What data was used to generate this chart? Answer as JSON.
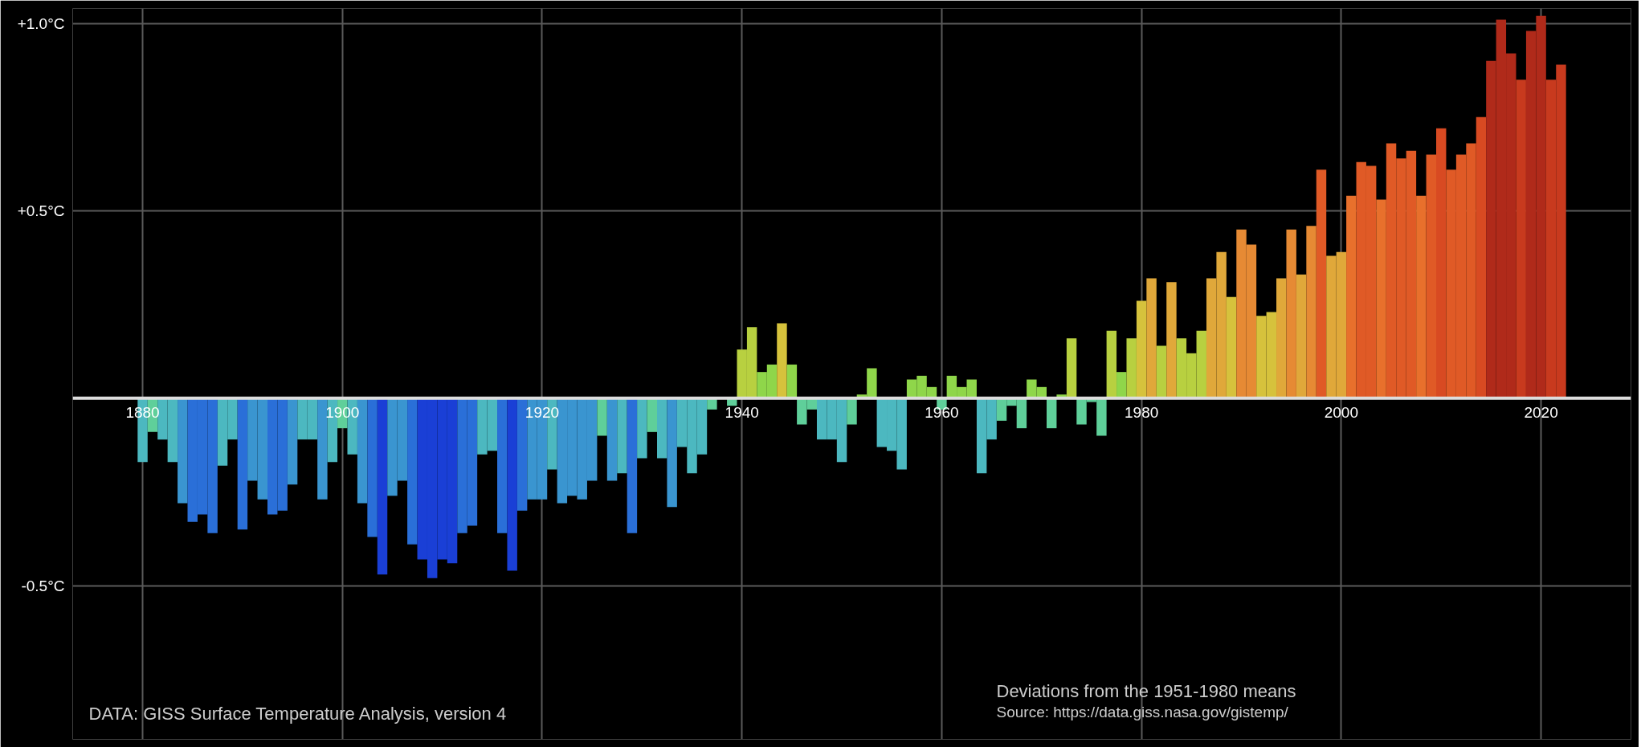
{
  "chart_data": {
    "type": "bar",
    "x": [
      1880,
      1881,
      1882,
      1883,
      1884,
      1885,
      1886,
      1887,
      1888,
      1889,
      1890,
      1891,
      1892,
      1893,
      1894,
      1895,
      1896,
      1897,
      1898,
      1899,
      1900,
      1901,
      1902,
      1903,
      1904,
      1905,
      1906,
      1907,
      1908,
      1909,
      1910,
      1911,
      1912,
      1913,
      1914,
      1915,
      1916,
      1917,
      1918,
      1919,
      1920,
      1921,
      1922,
      1923,
      1924,
      1925,
      1926,
      1927,
      1928,
      1929,
      1930,
      1931,
      1932,
      1933,
      1934,
      1935,
      1936,
      1937,
      1938,
      1939,
      1940,
      1941,
      1942,
      1943,
      1944,
      1945,
      1946,
      1947,
      1948,
      1949,
      1950,
      1951,
      1952,
      1953,
      1954,
      1955,
      1956,
      1957,
      1958,
      1959,
      1960,
      1961,
      1962,
      1963,
      1964,
      1965,
      1966,
      1967,
      1968,
      1969,
      1970,
      1971,
      1972,
      1973,
      1974,
      1975,
      1976,
      1977,
      1978,
      1979,
      1980,
      1981,
      1982,
      1983,
      1984,
      1985,
      1986,
      1987,
      1988,
      1989,
      1990,
      1991,
      1992,
      1993,
      1994,
      1995,
      1996,
      1997,
      1998,
      1999,
      2000,
      2001,
      2002,
      2003,
      2004,
      2005,
      2006,
      2007,
      2008,
      2009,
      2010,
      2011,
      2012,
      2013,
      2014,
      2015,
      2016,
      2017,
      2018,
      2019,
      2020,
      2021,
      2022
    ],
    "values": [
      -0.17,
      -0.09,
      -0.11,
      -0.17,
      -0.28,
      -0.33,
      -0.31,
      -0.36,
      -0.18,
      -0.11,
      -0.35,
      -0.22,
      -0.27,
      -0.31,
      -0.3,
      -0.23,
      -0.11,
      -0.11,
      -0.27,
      -0.17,
      -0.08,
      -0.15,
      -0.28,
      -0.37,
      -0.47,
      -0.26,
      -0.22,
      -0.39,
      -0.43,
      -0.48,
      -0.43,
      -0.44,
      -0.36,
      -0.34,
      -0.15,
      -0.14,
      -0.36,
      -0.46,
      -0.3,
      -0.27,
      -0.27,
      -0.19,
      -0.28,
      -0.26,
      -0.27,
      -0.22,
      -0.1,
      -0.22,
      -0.2,
      -0.36,
      -0.16,
      -0.09,
      -0.16,
      -0.29,
      -0.13,
      -0.2,
      -0.15,
      -0.03,
      0.0,
      -0.02,
      0.13,
      0.19,
      0.07,
      0.09,
      0.2,
      0.09,
      -0.07,
      -0.03,
      -0.11,
      -0.11,
      -0.17,
      -0.07,
      0.01,
      0.08,
      -0.13,
      -0.14,
      -0.19,
      0.05,
      0.06,
      0.03,
      -0.03,
      0.06,
      0.03,
      0.05,
      -0.2,
      -0.11,
      -0.06,
      -0.02,
      -0.08,
      0.05,
      0.03,
      -0.08,
      0.01,
      0.16,
      -0.07,
      -0.01,
      -0.1,
      0.18,
      0.07,
      0.16,
      0.26,
      0.32,
      0.14,
      0.31,
      0.16,
      0.12,
      0.18,
      0.32,
      0.39,
      0.27,
      0.45,
      0.41,
      0.22,
      0.23,
      0.32,
      0.45,
      0.33,
      0.46,
      0.61,
      0.38,
      0.39,
      0.54,
      0.63,
      0.62,
      0.53,
      0.68,
      0.64,
      0.66,
      0.54,
      0.65,
      0.72,
      0.61,
      0.65,
      0.68,
      0.75,
      0.9,
      1.01,
      0.92,
      0.85,
      0.98,
      1.02,
      0.85,
      0.89
    ],
    "colors": [
      "#4cb8c0",
      "#5fcf9a",
      "#4cb8c0",
      "#4cb8c0",
      "#3a95d0",
      "#2a6fd8",
      "#2a6fd8",
      "#2a6fd8",
      "#4cb8c0",
      "#4cb8c0",
      "#2a6fd8",
      "#3a95d0",
      "#3a95d0",
      "#2a6fd8",
      "#2a6fd8",
      "#3a95d0",
      "#4cb8c0",
      "#4cb8c0",
      "#3a95d0",
      "#4cb8c0",
      "#5fcf9a",
      "#4cb8c0",
      "#3a95d0",
      "#2a6fd8",
      "#1a3fd6",
      "#3a95d0",
      "#3a95d0",
      "#2a6fd8",
      "#1a3fd6",
      "#1a3fd6",
      "#1a3fd6",
      "#1a3fd6",
      "#2a6fd8",
      "#2a6fd8",
      "#4cb8c0",
      "#4cb8c0",
      "#2a6fd8",
      "#1a3fd6",
      "#2a6fd8",
      "#3a95d0",
      "#3a95d0",
      "#4cb8c0",
      "#3a95d0",
      "#3a95d0",
      "#3a95d0",
      "#3a95d0",
      "#5fcf9a",
      "#3a95d0",
      "#4cb8c0",
      "#2a6fd8",
      "#4cb8c0",
      "#5fcf9a",
      "#4cb8c0",
      "#3a95d0",
      "#4cb8c0",
      "#4cb8c0",
      "#4cb8c0",
      "#5fcf9a",
      "#8fd64a",
      "#5fcf9a",
      "#b8d040",
      "#b8d040",
      "#8fd64a",
      "#8fd64a",
      "#d6c23c",
      "#8fd64a",
      "#5fcf9a",
      "#5fcf9a",
      "#4cb8c0",
      "#4cb8c0",
      "#4cb8c0",
      "#5fcf9a",
      "#8fd64a",
      "#8fd64a",
      "#4cb8c0",
      "#4cb8c0",
      "#4cb8c0",
      "#8fd64a",
      "#8fd64a",
      "#8fd64a",
      "#5fcf9a",
      "#8fd64a",
      "#8fd64a",
      "#8fd64a",
      "#4cb8c0",
      "#4cb8c0",
      "#5fcf9a",
      "#5fcf9a",
      "#5fcf9a",
      "#8fd64a",
      "#8fd64a",
      "#5fcf9a",
      "#8fd64a",
      "#b8d040",
      "#5fcf9a",
      "#5fcf9a",
      "#5fcf9a",
      "#b8d040",
      "#8fd64a",
      "#b8d040",
      "#d6c23c",
      "#e0a83a",
      "#b8d040",
      "#e0a83a",
      "#b8d040",
      "#b8d040",
      "#b8d040",
      "#e0a83a",
      "#e0a83a",
      "#d6c23c",
      "#e68a34",
      "#e68a34",
      "#d6c23c",
      "#d6c23c",
      "#e0a83a",
      "#e68a34",
      "#e0a83a",
      "#e68a34",
      "#e05a26",
      "#e0a83a",
      "#e0a83a",
      "#e8702c",
      "#e05a26",
      "#e05a26",
      "#e8702c",
      "#e05a26",
      "#e05a26",
      "#e05a26",
      "#e8702c",
      "#e05a26",
      "#d84a22",
      "#e05a26",
      "#e05a26",
      "#e05a26",
      "#d84a22",
      "#b02a1a",
      "#b02a1a",
      "#b02a1a",
      "#c83a1e",
      "#b02a1a",
      "#b02a1a",
      "#c83a1e",
      "#c83a1e"
    ],
    "xlim": [
      1873,
      2029
    ],
    "ylim": [
      -0.91,
      1.04
    ],
    "xticks": [
      1880,
      1900,
      1920,
      1940,
      1960,
      1980,
      2000,
      2020
    ],
    "yticks": [
      {
        "value": 1.0,
        "label": "+1.0°C"
      },
      {
        "value": 0.5,
        "label": "+0.5°C"
      },
      {
        "value": -0.5,
        "label": "-0.5°C"
      }
    ],
    "grid": true,
    "annotations": [
      "DATA: GISS Surface Temperature Analysis, version 4",
      "Deviations from the 1951-1980 means",
      "Source: https://data.giss.nasa.gov/gistemp/"
    ]
  }
}
